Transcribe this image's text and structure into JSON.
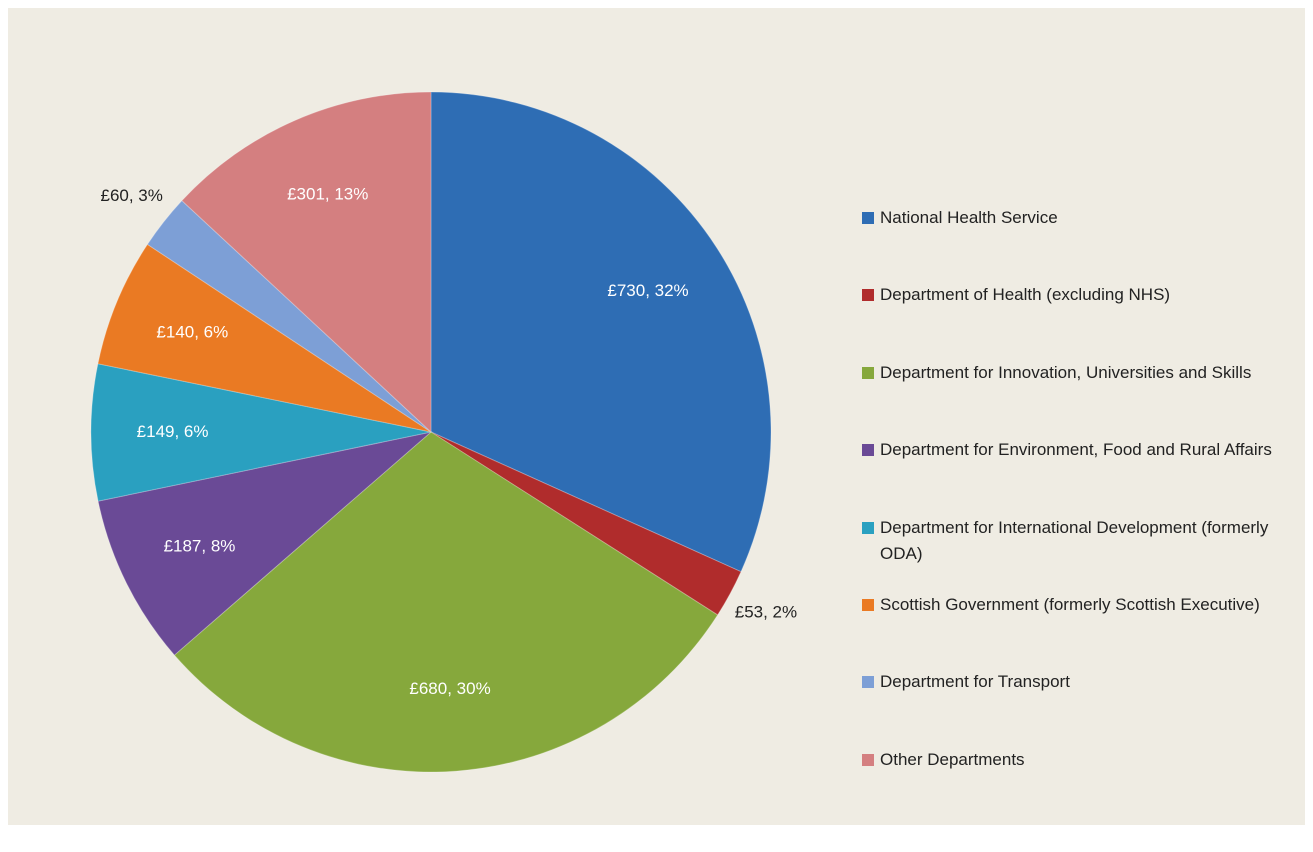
{
  "chart_data": {
    "type": "pie",
    "categories": [
      "National Health Service",
      "Department of Health (excluding NHS)",
      "Department for Innovation, Universities and Skills",
      "Department for Environment, Food and Rural Affairs",
      "Department for International Development (formerly ODA)",
      "Scottish Government (formerly Scottish Executive)",
      "Department for Transport",
      "Other Departments"
    ],
    "values": [
      730,
      53,
      680,
      187,
      149,
      140,
      60,
      301
    ],
    "value_labels": [
      "£730, 32%",
      "£53, 2%",
      "£680, 30%",
      "£187, 8%",
      "£149, 6%",
      "£140, 6%",
      "£60, 3%",
      "£301, 13%"
    ],
    "colors": [
      "#2e6db4",
      "#b02c2c",
      "#86a83c",
      "#6a4a96",
      "#2aa0c0",
      "#ea7a23",
      "#7d9fd6",
      "#d47f80"
    ],
    "legend": "right"
  }
}
